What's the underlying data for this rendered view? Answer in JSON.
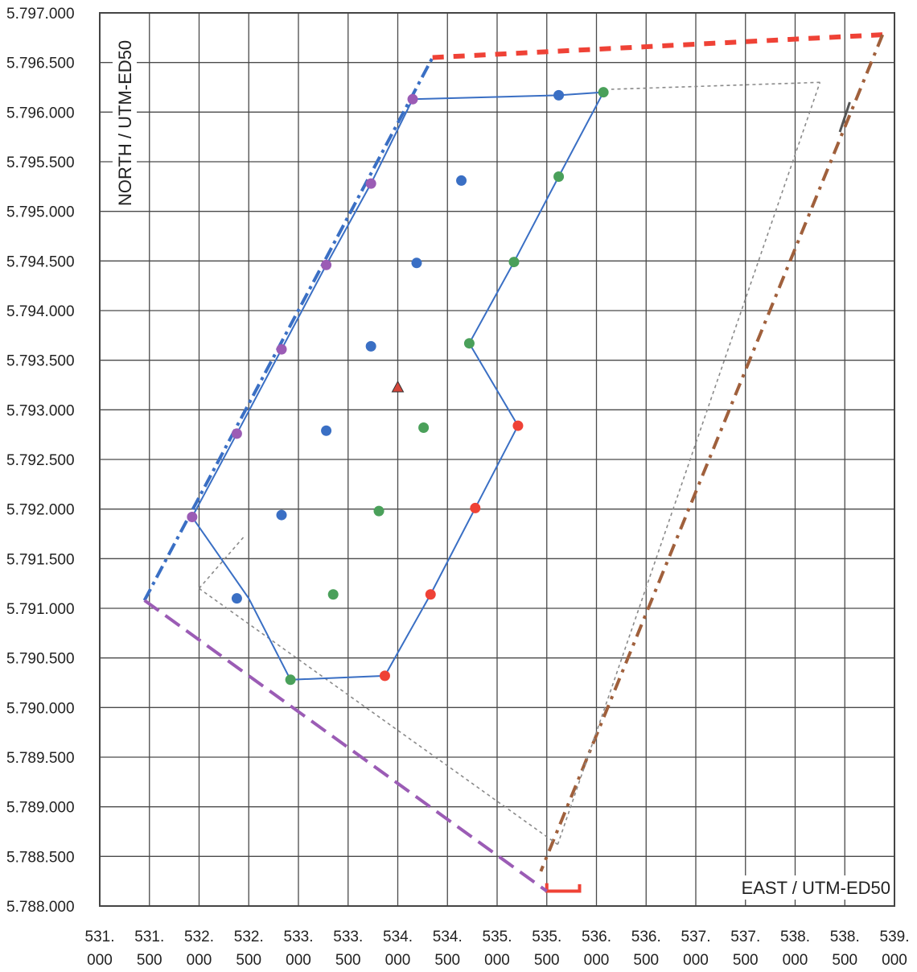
{
  "chart_data": {
    "type": "scatter",
    "title": "",
    "xlabel": "EAST / UTM-ED50",
    "ylabel": "NORTH / UTM-ED50",
    "xlim": [
      531000,
      539000
    ],
    "ylim": [
      5788000,
      5797000
    ],
    "grid": true,
    "x_ticks": [
      {
        "top": "531.",
        "bottom": "000",
        "value": 531000
      },
      {
        "top": "531.",
        "bottom": "500",
        "value": 531500
      },
      {
        "top": "532.",
        "bottom": "000",
        "value": 532000
      },
      {
        "top": "532.",
        "bottom": "500",
        "value": 532500
      },
      {
        "top": "533.",
        "bottom": "000",
        "value": 533000
      },
      {
        "top": "533.",
        "bottom": "500",
        "value": 533500
      },
      {
        "top": "534.",
        "bottom": "000",
        "value": 534000
      },
      {
        "top": "534.",
        "bottom": "500",
        "value": 534500
      },
      {
        "top": "535.",
        "bottom": "000",
        "value": 535000
      },
      {
        "top": "535.",
        "bottom": "500",
        "value": 535500
      },
      {
        "top": "536.",
        "bottom": "000",
        "value": 536000
      },
      {
        "top": "536.",
        "bottom": "500",
        "value": 536500
      },
      {
        "top": "537.",
        "bottom": "000",
        "value": 537000
      },
      {
        "top": "537.",
        "bottom": "500",
        "value": 537500
      },
      {
        "top": "538.",
        "bottom": "000",
        "value": 538000
      },
      {
        "top": "538.",
        "bottom": "500",
        "value": 538500
      },
      {
        "top": "539.",
        "bottom": "000",
        "value": 539000
      }
    ],
    "y_ticks": [
      {
        "label": "5.797.000",
        "value": 5797000
      },
      {
        "label": "5.796.500",
        "value": 5796500
      },
      {
        "label": "5.796.000",
        "value": 5796000
      },
      {
        "label": "5.795.500",
        "value": 5795500
      },
      {
        "label": "5.795.000",
        "value": 5795000
      },
      {
        "label": "5.794.500",
        "value": 5794500
      },
      {
        "label": "5.794.000",
        "value": 5794000
      },
      {
        "label": "5.793.500",
        "value": 5793500
      },
      {
        "label": "5.793.000",
        "value": 5793000
      },
      {
        "label": "5.792.500",
        "value": 5792500
      },
      {
        "label": "5.792.000",
        "value": 5792000
      },
      {
        "label": "5.791.500",
        "value": 5791500
      },
      {
        "label": "5.791.000",
        "value": 5791000
      },
      {
        "label": "5.790.500",
        "value": 5790500
      },
      {
        "label": "5.790.000",
        "value": 5790000
      },
      {
        "label": "5.789.500",
        "value": 5789500
      },
      {
        "label": "5.789.000",
        "value": 5789000
      },
      {
        "label": "5.788.500",
        "value": 5788500
      },
      {
        "label": "5.788.000",
        "value": 5788000
      }
    ],
    "boundary_lines": [
      {
        "color": "#3a6fc4",
        "dash": "16,6,4,6",
        "width": 4,
        "points": [
          [
            531450,
            5791080
          ],
          [
            534350,
            5796550
          ]
        ]
      },
      {
        "color": "#ef4236",
        "dash": "14,12",
        "width": 6,
        "points": [
          [
            534350,
            5796550
          ],
          [
            538880,
            5796780
          ]
        ]
      },
      {
        "color": "#a0603c",
        "dash": "16,8,4,8",
        "width": 4,
        "points": [
          [
            538880,
            5796780
          ],
          [
            535440,
            5788350
          ]
        ]
      },
      {
        "color": "#ef4236",
        "dash": "",
        "width": 4,
        "points": [
          [
            535500,
            5788230
          ],
          [
            535500,
            5788150
          ],
          [
            535830,
            5788150
          ],
          [
            535830,
            5788220
          ]
        ]
      },
      {
        "color": "#9b5cb5",
        "dash": "22,10",
        "width": 4,
        "points": [
          [
            531450,
            5791080
          ],
          [
            535500,
            5788150
          ]
        ]
      },
      {
        "color": "#8a8a8a",
        "dash": "4,4",
        "width": 1.6,
        "points": [
          [
            532000,
            5791200
          ],
          [
            535610,
            5788620
          ]
        ]
      },
      {
        "color": "#8a8a8a",
        "dash": "4,4",
        "width": 1.6,
        "points": [
          [
            535610,
            5788620
          ],
          [
            538250,
            5796300
          ]
        ]
      },
      {
        "color": "#8a8a8a",
        "dash": "4,4",
        "width": 1.6,
        "points": [
          [
            538250,
            5796300
          ],
          [
            536150,
            5796230
          ]
        ]
      },
      {
        "color": "#8a8a8a",
        "dash": "4,4",
        "width": 1.6,
        "points": [
          [
            532000,
            5791200
          ],
          [
            532450,
            5791720
          ]
        ]
      },
      {
        "color": "#555555",
        "dash": "",
        "width": 3,
        "points": [
          [
            538550,
            5796100
          ],
          [
            538450,
            5795800
          ]
        ]
      }
    ],
    "outline": {
      "color": "#3a6fc4",
      "points": [
        [
          534150,
          5796130
        ],
        [
          535620,
          5796170
        ],
        [
          536070,
          5796200
        ],
        [
          535620,
          5795350
        ],
        [
          535170,
          5794490
        ],
        [
          534720,
          5793670
        ],
        [
          535210,
          5792840
        ],
        [
          534780,
          5792010
        ],
        [
          534330,
          5791140
        ],
        [
          533870,
          5790320
        ],
        [
          532920,
          5790280
        ],
        [
          532500,
          5791100
        ],
        [
          531930,
          5791920
        ],
        [
          532380,
          5792760
        ],
        [
          532830,
          5793610
        ],
        [
          533280,
          5794460
        ],
        [
          533730,
          5795280
        ],
        [
          534150,
          5796130
        ]
      ]
    },
    "series": [
      {
        "color": "#9b5cb5",
        "points": [
          [
            534150,
            5796130
          ],
          [
            533730,
            5795280
          ],
          [
            533280,
            5794460
          ],
          [
            532830,
            5793610
          ],
          [
            532380,
            5792760
          ],
          [
            531930,
            5791920
          ]
        ]
      },
      {
        "color": "#3a6fc4",
        "points": [
          [
            535620,
            5796170
          ],
          [
            534640,
            5795310
          ],
          [
            534190,
            5794480
          ],
          [
            533730,
            5793640
          ],
          [
            533280,
            5792790
          ],
          [
            532830,
            5791940
          ],
          [
            532380,
            5791100
          ]
        ]
      },
      {
        "color": "#4aa05a",
        "points": [
          [
            536070,
            5796200
          ],
          [
            535620,
            5795350
          ],
          [
            535170,
            5794490
          ],
          [
            534720,
            5793670
          ],
          [
            534260,
            5792820
          ],
          [
            533810,
            5791980
          ],
          [
            533350,
            5791140
          ],
          [
            532920,
            5790280
          ]
        ]
      },
      {
        "color": "#ef4236",
        "points": [
          [
            535210,
            5792840
          ],
          [
            534780,
            5792010
          ],
          [
            534330,
            5791140
          ],
          [
            533870,
            5790320
          ]
        ]
      }
    ],
    "markers": [
      {
        "type": "triangle",
        "color": "#d4453a",
        "point": [
          534000,
          5793230
        ]
      }
    ]
  }
}
